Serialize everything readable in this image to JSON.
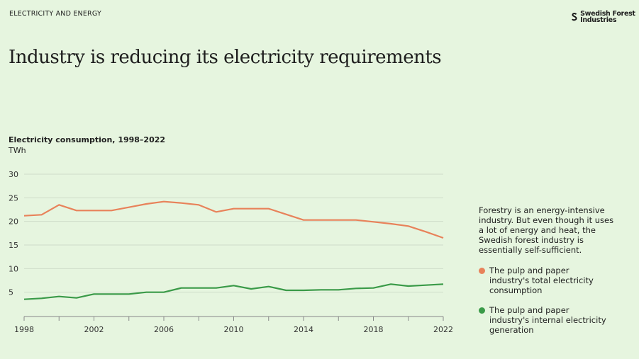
{
  "header": {
    "section": "ELECTRICITY AND ENERGY",
    "title": "Industry is reducing its electricity requirements",
    "logo_text": "Swedish Forest Industries"
  },
  "description": "Forestry is an energy-intensive industry. But even though it uses a lot of energy and heat, the Swedish forest industry is essentially self-sufficient.",
  "chart_data": {
    "type": "line",
    "title": "Electricity consumption, 1998–2022",
    "ylabel": "TWh",
    "xlabel": "",
    "xlim": [
      1998,
      2022
    ],
    "ylim": [
      0,
      30
    ],
    "yticks": [
      5,
      10,
      15,
      20,
      25,
      30
    ],
    "xticks": [
      1998,
      2002,
      2006,
      2010,
      2014,
      2018,
      2022
    ],
    "grid": true,
    "legend": "right",
    "x": [
      1998,
      1999,
      2000,
      2001,
      2002,
      2003,
      2004,
      2005,
      2006,
      2007,
      2008,
      2009,
      2010,
      2011,
      2012,
      2013,
      2014,
      2015,
      2016,
      2017,
      2018,
      2019,
      2020,
      2021,
      2022
    ],
    "series": [
      {
        "name": "The pulp and paper industry's total electricity consumption",
        "color": "#e8825a",
        "values": [
          21.2,
          21.4,
          23.5,
          22.3,
          22.3,
          22.3,
          23.0,
          23.7,
          24.2,
          23.9,
          23.5,
          22.0,
          22.7,
          22.7,
          22.7,
          21.5,
          20.3,
          20.3,
          20.3,
          20.3,
          19.9,
          19.5,
          19.0,
          17.8,
          16.5
        ]
      },
      {
        "name": "The pulp and paper industry's internal electricity generation",
        "color": "#3a9a48",
        "values": [
          3.5,
          3.7,
          4.1,
          3.8,
          4.6,
          4.6,
          4.6,
          5.0,
          5.0,
          5.9,
          5.9,
          5.9,
          6.4,
          5.7,
          6.2,
          5.4,
          5.4,
          5.5,
          5.5,
          5.8,
          5.9,
          6.7,
          6.3,
          6.5,
          6.7
        ]
      }
    ]
  }
}
